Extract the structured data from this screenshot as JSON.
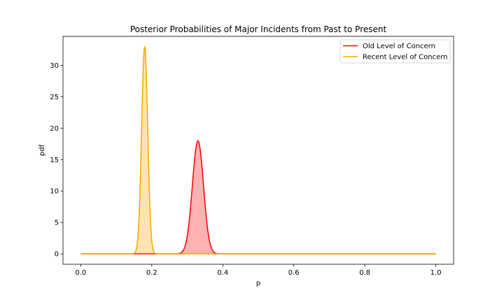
{
  "chart_data": {
    "type": "area",
    "title": "Posterior Probabilities of Major Incidents from Past to Present",
    "xlabel": "p",
    "ylabel": "pdf",
    "xlim": [
      -0.05,
      1.05
    ],
    "ylim": [
      -1.65,
      34.6
    ],
    "xticks": [
      0.0,
      0.2,
      0.4,
      0.6,
      0.8,
      1.0
    ],
    "xtick_labels": [
      "0.0",
      "0.2",
      "0.4",
      "0.6",
      "0.8",
      "1.0"
    ],
    "yticks": [
      0,
      5,
      10,
      15,
      20,
      25,
      30
    ],
    "ytick_labels": [
      "0",
      "5",
      "10",
      "15",
      "20",
      "25",
      "30"
    ],
    "grid": false,
    "legend_position": "top-right",
    "series": [
      {
        "name": "Old Level of Concern",
        "color": "#ff0000",
        "fill": "#ff0000",
        "fill_opacity": 0.3,
        "shape": "normal-approx",
        "peak_x": 0.33,
        "peak_y": 18.0,
        "support": [
          0.0,
          1.0
        ]
      },
      {
        "name": "Recent Level of Concern",
        "color": "#ffa500",
        "fill": "#ffa500",
        "fill_opacity": 0.3,
        "shape": "normal-approx",
        "peak_x": 0.18,
        "peak_y": 33.0,
        "support": [
          0.0,
          1.0
        ]
      }
    ]
  }
}
